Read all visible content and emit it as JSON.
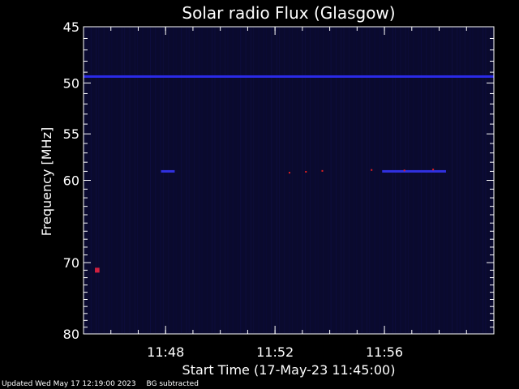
{
  "chart_data": {
    "type": "heatmap",
    "title": "Solar radio Flux (Glasgow)",
    "xlabel": "Start Time (17-May-23 11:45:00)",
    "ylabel": "Frequency [MHz]",
    "y_scale": "log",
    "ylim": [
      45,
      80
    ],
    "y_ticks": [
      "45",
      "50",
      "55",
      "60",
      "70",
      "80"
    ],
    "xlim": [
      "11:45:00",
      "12:00:00"
    ],
    "x_ticks": [
      "11:48",
      "11:52",
      "11:56"
    ],
    "grid": false,
    "background_color": "#0a0a2e",
    "colors": {
      "axis": "#ffffff",
      "low": "#0a0a2e",
      "mid": "#1e1ed2",
      "high": "#e02020"
    },
    "features": [
      {
        "name": "continuous line",
        "freq_mhz": 49.4,
        "start": "11:45:00",
        "end": "12:00:00",
        "color": "#2a2ae8"
      },
      {
        "name": "burst",
        "freq_mhz": 59.0,
        "start": "11:47:50",
        "end": "11:48:20",
        "color": "#3030e0"
      },
      {
        "name": "burst",
        "freq_mhz": 59.0,
        "start": "11:55:55",
        "end": "11:58:15",
        "color": "#3030e0"
      },
      {
        "name": "spot",
        "freq_mhz": 71.0,
        "start": "11:45:25",
        "end": "11:45:35",
        "color": "#d02040"
      }
    ]
  },
  "footer": {
    "updated": "Updated Wed May 17 12:19:00 2023",
    "note": "BG subtracted"
  }
}
